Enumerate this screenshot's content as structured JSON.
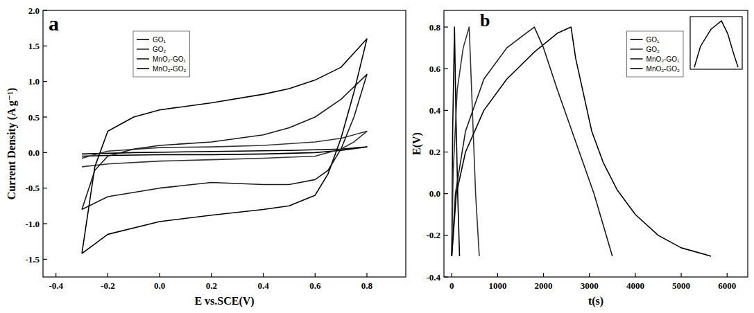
{
  "chart_data": [
    {
      "type": "line",
      "title": "a",
      "x_label": "E vs.SCE(V)",
      "y_label": "Current Density (A g⁻¹)",
      "xlim": [
        -0.45,
        0.95
      ],
      "xticks": [
        -0.4,
        -0.2,
        {
          "value": 0,
          "label": "0.0"
        },
        0.2,
        0.4,
        0.6,
        0.8
      ],
      "ylim": [
        -1.75,
        2.0
      ],
      "yticks": [
        {
          "value": -1.5,
          "label": "-1.5"
        },
        {
          "value": -1,
          "label": "-1.0"
        },
        {
          "value": -0.5,
          "label": "-0.5"
        },
        {
          "value": 0,
          "label": "0.0"
        },
        0.5,
        {
          "value": 1,
          "label": "1.0"
        },
        1.5,
        {
          "value": 2,
          "label": "2.0"
        }
      ],
      "grid": false,
      "legend": "upper left",
      "line_style": "solid",
      "marker": "none",
      "series": [
        {
          "name": "GO₁",
          "color": "#000000",
          "x": [
            -0.3,
            -0.1,
            0.1,
            0.3,
            0.5,
            0.7,
            0.8,
            0.7,
            0.6,
            0.4,
            0.2,
            0.0,
            -0.2,
            -0.3
          ],
          "values": [
            -0.02,
            0.0,
            0.01,
            0.02,
            0.03,
            0.05,
            0.08,
            0.03,
            0.0,
            -0.02,
            -0.03,
            -0.03,
            -0.04,
            -0.05
          ]
        },
        {
          "name": "GO₂",
          "color": "#333333",
          "x": [
            -0.3,
            -0.2,
            0.0,
            0.2,
            0.4,
            0.6,
            0.7,
            0.8,
            0.75,
            0.7,
            0.6,
            0.4,
            0.2,
            0.0,
            -0.2,
            -0.3
          ],
          "values": [
            -0.08,
            0.02,
            0.07,
            0.08,
            0.1,
            0.15,
            0.2,
            0.3,
            0.15,
            0.05,
            -0.05,
            -0.08,
            -0.1,
            -0.12,
            -0.16,
            -0.2
          ]
        },
        {
          "name": "MnO₂-GO₁",
          "color": "#1a1a1a",
          "x": [
            -0.3,
            -0.25,
            -0.2,
            -0.1,
            0.0,
            0.2,
            0.4,
            0.5,
            0.6,
            0.7,
            0.8,
            0.75,
            0.7,
            0.65,
            0.6,
            0.5,
            0.4,
            0.2,
            0.0,
            -0.2,
            -0.3
          ],
          "values": [
            -0.8,
            -0.25,
            -0.05,
            0.05,
            0.1,
            0.15,
            0.25,
            0.35,
            0.5,
            0.75,
            1.1,
            0.5,
            0.05,
            -0.25,
            -0.38,
            -0.45,
            -0.45,
            -0.42,
            -0.5,
            -0.62,
            -0.8
          ]
        },
        {
          "name": "MnO₂-GO₂",
          "color": "#000000",
          "x": [
            -0.3,
            -0.25,
            -0.2,
            -0.1,
            0.0,
            0.2,
            0.4,
            0.5,
            0.6,
            0.7,
            0.8,
            0.75,
            0.7,
            0.65,
            0.6,
            0.5,
            0.4,
            0.2,
            0.0,
            -0.2,
            -0.3
          ],
          "values": [
            -1.42,
            -0.2,
            0.3,
            0.5,
            0.6,
            0.7,
            0.82,
            0.9,
            1.02,
            1.2,
            1.6,
            0.85,
            0.2,
            -0.3,
            -0.6,
            -0.75,
            -0.8,
            -0.88,
            -0.97,
            -1.15,
            -1.42
          ]
        }
      ]
    },
    {
      "type": "line",
      "title": "b",
      "x_label": "t(s)",
      "y_label": "E(V)",
      "xlim": [
        -170,
        6450
      ],
      "xticks": [
        0,
        1000,
        2000,
        3000,
        4000,
        5000,
        6000
      ],
      "ylim": [
        -0.4,
        0.88
      ],
      "yticks": [
        -0.4,
        -0.2,
        {
          "value": 0,
          "label": "0.0"
        },
        0.2,
        0.4,
        0.6,
        0.8
      ],
      "grid": false,
      "legend": "upper right",
      "line_style": "solid",
      "marker": "none",
      "series": [
        {
          "name": "GO₁",
          "color": "#000000",
          "x": [
            0,
            20,
            60,
            90,
            130,
            170
          ],
          "values": [
            -0.3,
            0.3,
            0.8,
            0.4,
            0.0,
            -0.3
          ]
        },
        {
          "name": "GO₂",
          "color": "#333333",
          "x": [
            0,
            30,
            120,
            250,
            380,
            450,
            520,
            600
          ],
          "values": [
            -0.3,
            0.1,
            0.5,
            0.7,
            0.8,
            0.4,
            0.0,
            -0.3
          ]
        },
        {
          "name": "MnO₂-GO₁",
          "color": "#1a1a1a",
          "x": [
            0,
            80,
            300,
            700,
            1200,
            1800,
            2000,
            2300,
            2700,
            3100,
            3500
          ],
          "values": [
            -0.3,
            0.0,
            0.3,
            0.55,
            0.7,
            0.8,
            0.7,
            0.5,
            0.25,
            0.0,
            -0.3
          ]
        },
        {
          "name": "MnO₂-GO₂",
          "color": "#000000",
          "x": [
            0,
            100,
            300,
            700,
            1200,
            1800,
            2300,
            2600,
            2700,
            2850,
            3050,
            3300,
            3600,
            4000,
            4500,
            5000,
            5650
          ],
          "values": [
            -0.3,
            0.0,
            0.2,
            0.4,
            0.55,
            0.68,
            0.77,
            0.8,
            0.65,
            0.5,
            0.3,
            0.15,
            0.02,
            -0.1,
            -0.2,
            -0.26,
            -0.3
          ]
        }
      ]
    },
    {
      "type": "line",
      "xlim": [
        0,
        25
      ],
      "ylim": [
        -0.35,
        0.9
      ],
      "tick_labels": false,
      "line_style": "solid",
      "marker": "none",
      "series": [
        {
          "color": "#000000",
          "x": [
            2,
            5,
            10,
            15,
            18,
            21,
            23
          ],
          "values": [
            -0.3,
            0.2,
            0.6,
            0.8,
            0.5,
            0.0,
            -0.3
          ]
        }
      ]
    }
  ]
}
